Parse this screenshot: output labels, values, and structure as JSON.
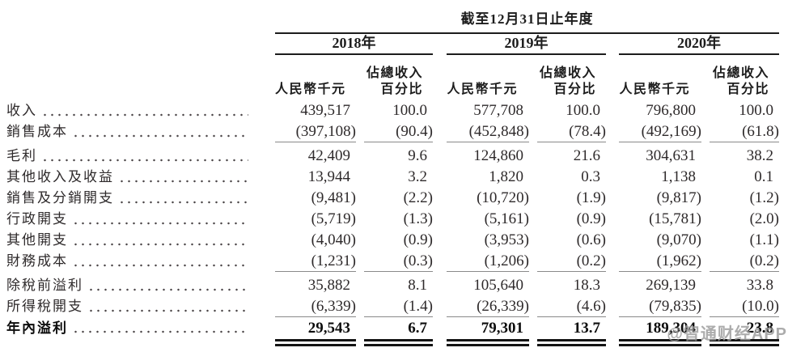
{
  "page": {
    "background": "#ffffff",
    "text_color": "#2e2a2b",
    "dark_rule_color": "#1c1c1c",
    "light_rule_color": "#8a8a8a",
    "watermark_color": "#9b9b9b"
  },
  "watermark": {
    "text": "@智通财经APP"
  },
  "table": {
    "period_header": "截至12月31日止年度",
    "col_groups": [
      {
        "year": "2018年",
        "amount_header": "人民幣千元",
        "pct_header_line1": "佔總收入",
        "pct_header_line2": "百分比"
      },
      {
        "year": "2019年",
        "amount_header": "人民幣千元",
        "pct_header_line1": "佔總收入",
        "pct_header_line2": "百分比"
      },
      {
        "year": "2020年",
        "amount_header": "人民幣千元",
        "pct_header_line1": "佔總收入",
        "pct_header_line2": "百分比"
      }
    ],
    "rows": [
      {
        "label": "收入",
        "values": [
          "439,517",
          "100.0",
          "577,708",
          "100.0",
          "796,800",
          "100.0"
        ],
        "bold": false,
        "rule_below": false,
        "double_rule_below": false
      },
      {
        "label": "銷售成本",
        "values": [
          "(397,108)",
          "(90.4)",
          "(452,848)",
          "(78.4)",
          "(492,169)",
          "(61.8)"
        ],
        "bold": false,
        "rule_below": true,
        "double_rule_below": false
      },
      {
        "label": "毛利",
        "values": [
          "42,409",
          "9.6",
          "124,860",
          "21.6",
          "304,631",
          "38.2"
        ],
        "bold": false,
        "rule_below": false,
        "double_rule_below": false
      },
      {
        "label": "其他收入及收益",
        "values": [
          "13,944",
          "3.2",
          "1,820",
          "0.3",
          "1,138",
          "0.1"
        ],
        "bold": false,
        "rule_below": false,
        "double_rule_below": false
      },
      {
        "label": "銷售及分銷開支",
        "values": [
          "(9,481)",
          "(2.2)",
          "(10,720)",
          "(1.9)",
          "(9,817)",
          "(1.2)"
        ],
        "bold": false,
        "rule_below": false,
        "double_rule_below": false
      },
      {
        "label": "行政開支",
        "values": [
          "(5,719)",
          "(1.3)",
          "(5,161)",
          "(0.9)",
          "(15,781)",
          "(2.0)"
        ],
        "bold": false,
        "rule_below": false,
        "double_rule_below": false
      },
      {
        "label": "其他開支",
        "values": [
          "(4,040)",
          "(0.9)",
          "(3,953)",
          "(0.6)",
          "(9,070)",
          "(1.1)"
        ],
        "bold": false,
        "rule_below": false,
        "double_rule_below": false
      },
      {
        "label": "財務成本",
        "values": [
          "(1,231)",
          "(0.3)",
          "(1,206)",
          "(0.2)",
          "(1,962)",
          "(0.2)"
        ],
        "bold": false,
        "rule_below": true,
        "double_rule_below": false
      },
      {
        "label": "除稅前溢利",
        "values": [
          "35,882",
          "8.1",
          "105,640",
          "18.3",
          "269,139",
          "33.8"
        ],
        "bold": false,
        "rule_below": false,
        "double_rule_below": false
      },
      {
        "label": "所得稅開支",
        "values": [
          "(6,339)",
          "(1.4)",
          "(26,339)",
          "(4.6)",
          "(79,835)",
          "(10.0)"
        ],
        "bold": false,
        "rule_below": true,
        "double_rule_below": false
      },
      {
        "label": "年內溢利",
        "values": [
          "29,543",
          "6.7",
          "79,301",
          "13.7",
          "189,304",
          "23.8"
        ],
        "bold": true,
        "rule_below": false,
        "double_rule_below": true
      }
    ]
  }
}
